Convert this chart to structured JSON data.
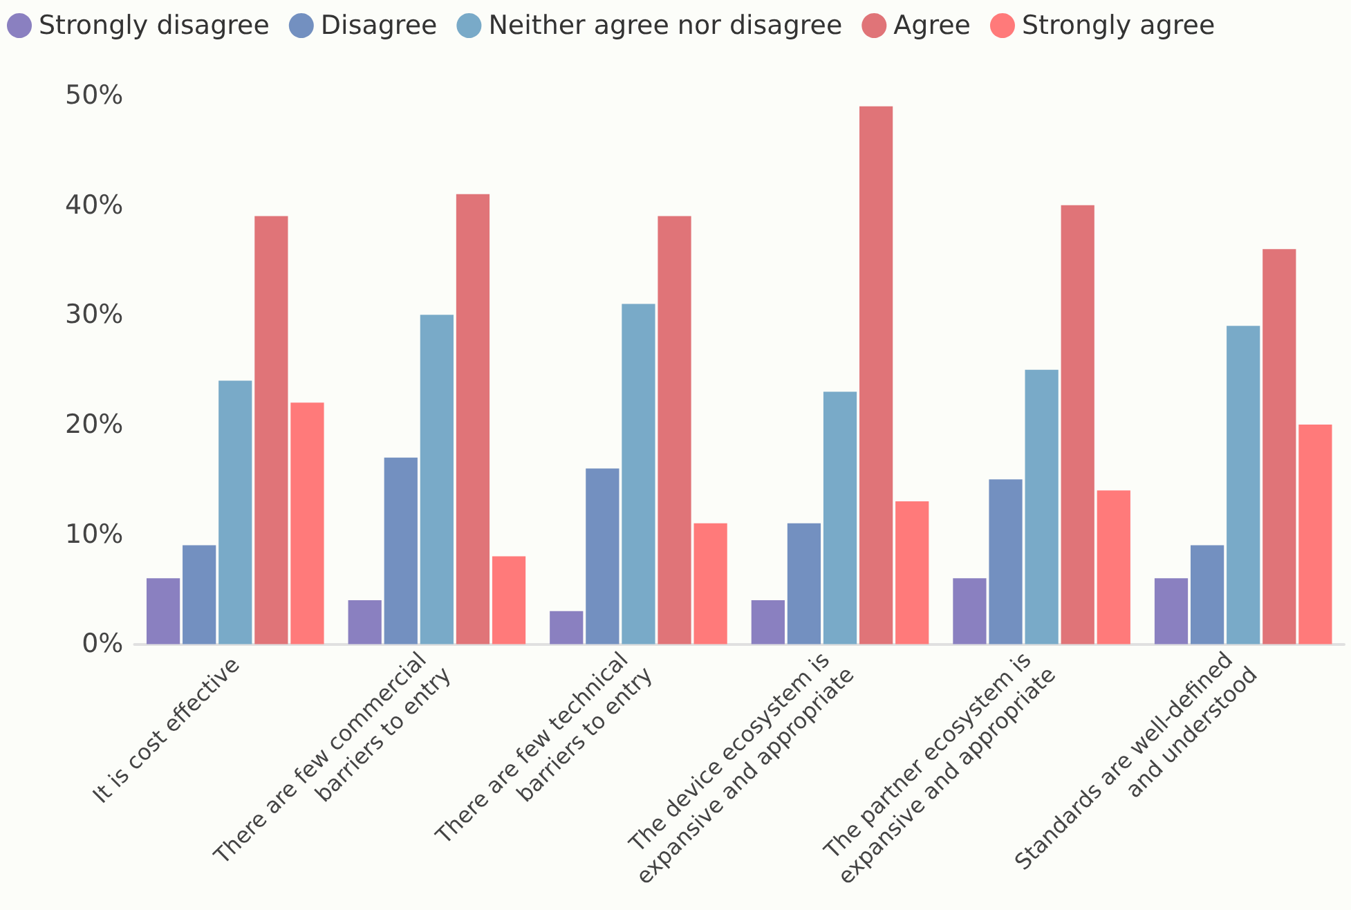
{
  "chart_data": {
    "type": "bar",
    "categories": [
      "It is cost effective",
      "There are few commercial barriers to entry",
      "There are few technical barriers to entry",
      "The device ecosystem is expansive and appropriate",
      "The partner ecosystem is expansive and appropriate",
      "Standards are well-defined and understood"
    ],
    "series": [
      {
        "name": "Strongly disagree",
        "color": "#8a80c0",
        "values": [
          6,
          4,
          3,
          4,
          6,
          6
        ]
      },
      {
        "name": "Disagree",
        "color": "#7390c0",
        "values": [
          9,
          17,
          16,
          11,
          15,
          9
        ]
      },
      {
        "name": "Neither agree nor disagree",
        "color": "#79aac8",
        "values": [
          24,
          30,
          31,
          23,
          25,
          29
        ]
      },
      {
        "name": "Agree",
        "color": "#e07478",
        "values": [
          39,
          41,
          39,
          49,
          40,
          36
        ]
      },
      {
        "name": "Strongly agree",
        "color": "#ff7a7a",
        "values": [
          22,
          8,
          11,
          13,
          14,
          20
        ]
      }
    ],
    "ylim": [
      0,
      50
    ],
    "yticks": [
      {
        "value": 0,
        "label": "0%"
      },
      {
        "value": 10,
        "label": "10%"
      },
      {
        "value": 20,
        "label": "20%"
      },
      {
        "value": 30,
        "label": "30%"
      },
      {
        "value": 40,
        "label": "40%"
      },
      {
        "value": 50,
        "label": "50%"
      }
    ],
    "grid": false,
    "legend": "top left"
  }
}
